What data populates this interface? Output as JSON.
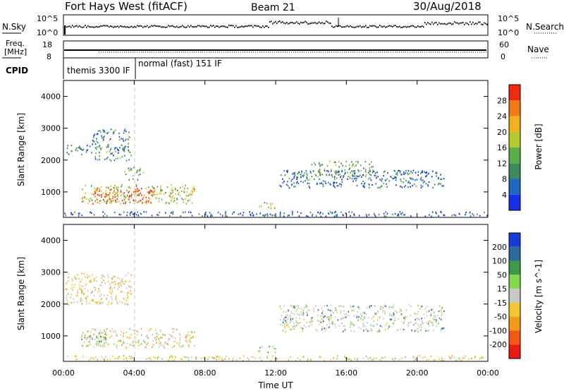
{
  "header": {
    "station": "Fort Hays West (fitACF)",
    "beam": "Beam 21",
    "date": "30/Aug/2018"
  },
  "panels": {
    "noise": {
      "left_label": "N.Sky",
      "right_label": "N.Search",
      "left_ticks": [
        "10^5",
        "10^0"
      ],
      "right_ticks": [
        "10^5",
        "10^0"
      ]
    },
    "freq": {
      "left_label_1": "Freq.",
      "left_label_2": "[MHz]",
      "left_ticks": [
        "18",
        "8"
      ],
      "right_label": "Nave",
      "right_ticks": [
        "60",
        "0"
      ]
    },
    "cpid": {
      "label": "CPID",
      "modes": [
        "themis 3300 IF",
        "normal (fast) 151 IF"
      ],
      "mode_switch_time": 4.0
    }
  },
  "chart_data": [
    {
      "type": "heatmap",
      "name": "power",
      "xlabel": "",
      "ylabel": "Slant Range [km]",
      "x_range": [
        0,
        24
      ],
      "y_range": [
        200,
        4500
      ],
      "y_ticks": [
        "1000",
        "2000",
        "3000",
        "4000"
      ],
      "colorbar_label": "Power [dB]",
      "colorbar_ticks": [
        "4",
        "8",
        "12",
        "16",
        "20",
        "24",
        "28"
      ],
      "colorbar_colors": [
        "#1a2ee8",
        "#1c6ac0",
        "#3c8a5a",
        "#5cae46",
        "#b8c830",
        "#f2b21c",
        "#f27a18",
        "#ee2a10"
      ],
      "regions": [
        {
          "t": [
            1.0,
            7.4
          ],
          "r": [
            650,
            1250
          ],
          "level": 0.55
        },
        {
          "t": [
            1.6,
            5.2
          ],
          "r": [
            650,
            1150
          ],
          "level": 0.92
        },
        {
          "t": [
            0.1,
            1.6
          ],
          "r": [
            2200,
            2500
          ],
          "level": 0.25
        },
        {
          "t": [
            1.6,
            3.8
          ],
          "r": [
            2000,
            3000
          ],
          "level": 0.3
        },
        {
          "t": [
            3.4,
            4.5
          ],
          "r": [
            1400,
            1800
          ],
          "level": 0.4
        },
        {
          "t": [
            14.0,
            17.5
          ],
          "r": [
            1500,
            2000
          ],
          "level": 0.45
        },
        {
          "t": [
            12.2,
            21.5
          ],
          "r": [
            1150,
            1700
          ],
          "level": 0.2
        },
        {
          "t": [
            13.2,
            14.0
          ],
          "r": [
            1350,
            1650
          ],
          "level": 0.35
        },
        {
          "t": [
            11.0,
            12.0
          ],
          "r": [
            500,
            700
          ],
          "level": 0.5
        },
        {
          "t": [
            0.0,
            24.0
          ],
          "r": [
            250,
            400
          ],
          "level": 0.15
        }
      ],
      "time_marker": 4.0
    },
    {
      "type": "heatmap",
      "name": "velocity",
      "xlabel": "Time UT",
      "ylabel": "Slant Range [km]",
      "x_range": [
        0,
        24
      ],
      "y_range": [
        200,
        4500
      ],
      "x_ticks": [
        "00:00",
        "04:00",
        "08:00",
        "12:00",
        "16:00",
        "20:00",
        "00:00"
      ],
      "y_ticks": [
        "1000",
        "2000",
        "3000",
        "4000"
      ],
      "colorbar_label": "Velocity [m s^-1]",
      "colorbar_ticks": [
        "200",
        "100",
        "50",
        "15",
        "-15",
        "-50",
        "-100",
        "-200"
      ],
      "colorbar_colors": [
        "#1a3ad8",
        "#2a6c9a",
        "#3a9a4a",
        "#84d84c",
        "#c8c8c8",
        "#f2c832",
        "#f29a1c",
        "#f25a14",
        "#e81c10"
      ],
      "regions": [
        {
          "t": [
            1.0,
            7.4
          ],
          "r": [
            650,
            1250
          ],
          "v": "mixed_gray_yellow"
        },
        {
          "t": [
            1.0,
            2.4
          ],
          "r": [
            700,
            1150
          ],
          "v": "green"
        },
        {
          "t": [
            0.1,
            3.8
          ],
          "r": [
            2000,
            3000
          ],
          "v": "gray_yellow"
        },
        {
          "t": [
            12.2,
            21.5
          ],
          "r": [
            1150,
            2000
          ],
          "v": "gray"
        },
        {
          "t": [
            11.0,
            12.0
          ],
          "r": [
            500,
            700
          ],
          "v": "green"
        },
        {
          "t": [
            0.0,
            24.0
          ],
          "r": [
            250,
            400
          ],
          "v": "yellow"
        }
      ],
      "time_marker": 4.0
    }
  ]
}
